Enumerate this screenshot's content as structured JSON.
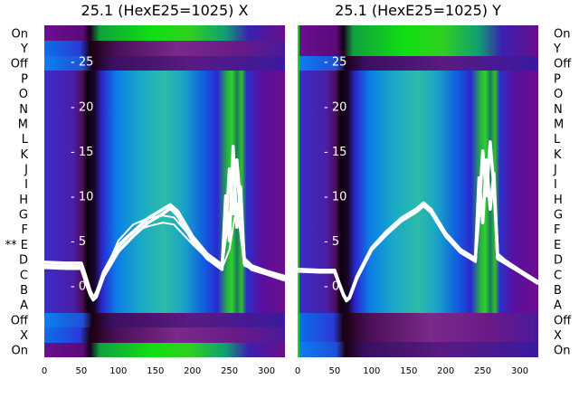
{
  "chart_data": [
    {
      "type": "heatmap",
      "title": "25.1 (HexE25=1025) X",
      "xlabel": "",
      "ylabel": "",
      "x_ticks": [
        "0",
        "50",
        "100",
        "150",
        "200",
        "250",
        "300"
      ],
      "xlim": [
        0,
        325
      ],
      "y_ticks": [
        "- 0",
        "- 5",
        "- 10",
        "- 15",
        "- 20",
        "- 25"
      ],
      "ylim": [
        -8,
        29
      ],
      "y_tick_values": [
        0,
        5,
        10,
        15,
        20,
        25
      ],
      "row_labels": [
        "On",
        "Y",
        "Off",
        "P",
        "O",
        "N",
        "M",
        "L",
        "K",
        "J",
        "I",
        "H",
        "G",
        "F",
        "** E",
        "D",
        "C",
        "B",
        "A",
        "Off",
        "X",
        "On"
      ],
      "row_label_side": "left",
      "series": [
        {
          "x": [
            0,
            30,
            50,
            56,
            62,
            66,
            70,
            80,
            100,
            120,
            140,
            160,
            170,
            180,
            200,
            220,
            240,
            245,
            250,
            255,
            260,
            265,
            270,
            280,
            300,
            325
          ],
          "y": [
            2.6,
            2.5,
            2.5,
            1.0,
            -0.6,
            -1.3,
            -1.0,
            1.5,
            4.5,
            6.0,
            7.5,
            8.5,
            9.0,
            8.3,
            5.5,
            3.5,
            2.3,
            6.0,
            13.0,
            8.0,
            14.0,
            9.0,
            3.0,
            2.2,
            1.6,
            1.0
          ]
        },
        {
          "x": [
            0,
            30,
            50,
            56,
            62,
            66,
            70,
            80,
            100,
            120,
            140,
            160,
            170,
            180,
            200,
            220,
            240,
            245,
            250,
            255,
            260,
            265,
            270,
            280,
            300,
            325
          ],
          "y": [
            2.0,
            1.9,
            1.9,
            0.4,
            -1.0,
            -1.6,
            -1.3,
            1.0,
            3.8,
            5.5,
            7.0,
            8.0,
            8.6,
            7.8,
            5.0,
            3.0,
            1.8,
            10.0,
            5.0,
            15.5,
            6.5,
            11.0,
            2.5,
            1.8,
            1.3,
            0.6
          ]
        },
        {
          "x": [
            0,
            50,
            62,
            66,
            80,
            100,
            120,
            140,
            160,
            175,
            200,
            220,
            240,
            250,
            260,
            270,
            300,
            325
          ],
          "y": [
            2.3,
            2.2,
            -0.8,
            -1.4,
            1.2,
            5.0,
            6.8,
            7.5,
            7.8,
            7.6,
            5.2,
            3.3,
            2.0,
            8.0,
            12.0,
            2.4,
            1.4,
            0.8
          ]
        },
        {
          "x": [
            0,
            50,
            62,
            66,
            80,
            100,
            120,
            140,
            160,
            175,
            200,
            220,
            240,
            250,
            260,
            270,
            300,
            325
          ],
          "y": [
            2.2,
            2.1,
            -0.9,
            -1.5,
            1.0,
            4.2,
            6.0,
            6.6,
            7.0,
            6.8,
            4.6,
            3.0,
            1.9,
            4.0,
            9.0,
            2.2,
            1.3,
            0.7
          ]
        }
      ]
    },
    {
      "type": "heatmap",
      "title": "25.1 (HexE25=1025) Y",
      "xlabel": "",
      "ylabel": "",
      "x_ticks": [
        "0",
        "50",
        "100",
        "150",
        "200",
        "250",
        "300"
      ],
      "xlim": [
        0,
        325
      ],
      "y_ticks": [
        "- 0",
        "- 5",
        "- 10",
        "- 15",
        "- 20",
        "- 25"
      ],
      "ylim": [
        -8,
        29
      ],
      "y_tick_values": [
        0,
        5,
        10,
        15,
        20,
        25
      ],
      "row_labels": [
        "On",
        "Y",
        "Off",
        "P",
        "O",
        "N",
        "M",
        "L",
        "K",
        "J",
        "I",
        "H",
        "G",
        "F",
        "E",
        "D",
        "C",
        "B",
        "A",
        "Off",
        "X",
        "On"
      ],
      "row_label_side": "right",
      "series": [
        {
          "x": [
            0,
            30,
            50,
            56,
            62,
            66,
            70,
            80,
            100,
            120,
            140,
            160,
            170,
            180,
            200,
            220,
            240,
            245,
            250,
            255,
            260,
            265,
            270,
            280,
            300,
            325
          ],
          "y": [
            1.8,
            1.7,
            1.7,
            0.3,
            -1.0,
            -1.6,
            -1.3,
            1.0,
            4.2,
            6.0,
            7.5,
            8.5,
            9.2,
            8.5,
            5.8,
            4.0,
            3.0,
            8.0,
            15.0,
            10.0,
            16.0,
            11.0,
            3.5,
            2.8,
            1.7,
            0.4
          ]
        },
        {
          "x": [
            0,
            30,
            50,
            56,
            62,
            66,
            70,
            80,
            100,
            120,
            140,
            160,
            170,
            180,
            200,
            220,
            240,
            245,
            250,
            255,
            260,
            265,
            270,
            280,
            300,
            325
          ],
          "y": [
            1.6,
            1.5,
            1.5,
            0.2,
            -1.1,
            -1.7,
            -1.4,
            0.8,
            4.0,
            5.7,
            7.2,
            8.2,
            8.9,
            8.2,
            5.5,
            3.7,
            2.7,
            12.0,
            7.0,
            14.0,
            8.5,
            12.5,
            3.0,
            2.5,
            1.5,
            0.2
          ]
        }
      ]
    }
  ]
}
